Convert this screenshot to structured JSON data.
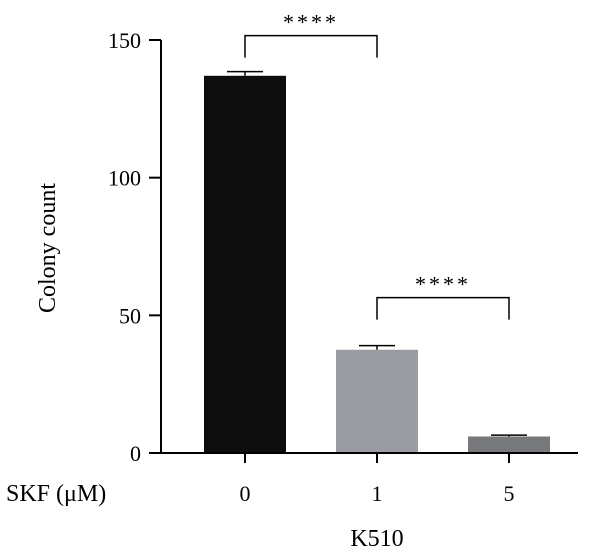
{
  "chart_data": {
    "type": "bar",
    "categories": [
      "0",
      "1",
      "5"
    ],
    "values": [
      137,
      37.5,
      6
    ],
    "errors": [
      1.5,
      1.5,
      0.5
    ],
    "ylabel": "Colony count",
    "xlabel": "K510",
    "x_row_label": "SKF (μM)",
    "ylim": [
      0,
      150
    ],
    "yticks": [
      0,
      50,
      100,
      150
    ],
    "bar_colors": [
      "#0d0d0d",
      "#9a9ca1",
      "#77787b"
    ],
    "significance": [
      {
        "from": 0,
        "to": 1,
        "label": "****"
      },
      {
        "from": 1,
        "to": 2,
        "label": "****"
      }
    ]
  }
}
